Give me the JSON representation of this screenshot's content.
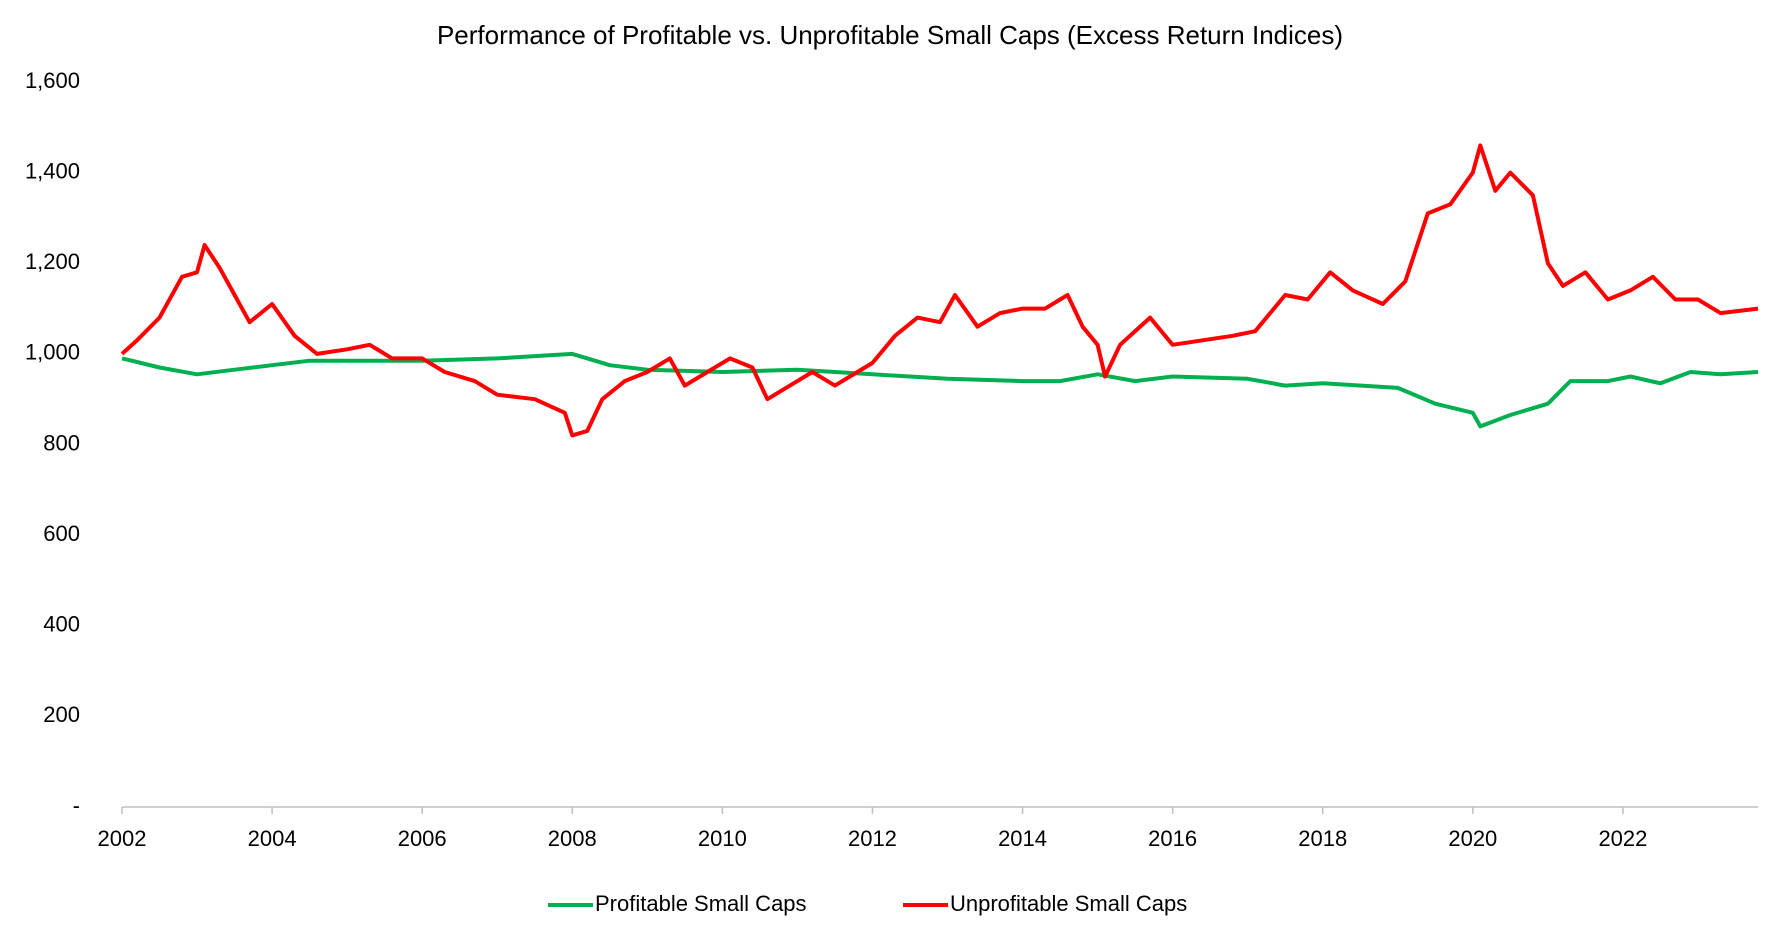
{
  "chart_data": {
    "type": "line",
    "title": "Performance of Profitable vs. Unprofitable Small Caps (Excess Return Indices)",
    "xlim": [
      2002,
      2023.8
    ],
    "xticks": [
      2002,
      2004,
      2006,
      2008,
      2010,
      2012,
      2014,
      2016,
      2018,
      2020,
      2022
    ],
    "ylim": [
      0,
      1600
    ],
    "yticks": [
      {
        "value": 0,
        "label": "-"
      },
      200,
      400,
      600,
      800,
      {
        "value": 1000,
        "label": "1,000"
      },
      {
        "value": 1200,
        "label": "1,200"
      },
      {
        "value": 1400,
        "label": "1,400"
      },
      {
        "value": 1600,
        "label": "1,600"
      }
    ],
    "legend": "bottom",
    "series": [
      {
        "name": "Profitable Small Caps",
        "color": "#00b050",
        "x": [
          2002,
          2002.5,
          2003,
          2003.5,
          2004,
          2004.5,
          2005,
          2006,
          2007,
          2008,
          2008.5,
          2009,
          2010,
          2011,
          2012,
          2013,
          2014,
          2014.5,
          2015,
          2015.5,
          2016,
          2017,
          2017.5,
          2018,
          2019,
          2019.5,
          2020,
          2020.1,
          2020.5,
          2021,
          2021.3,
          2021.8,
          2022.1,
          2022.5,
          2022.9,
          2023.3,
          2023.8
        ],
        "values": [
          990,
          970,
          955,
          965,
          975,
          985,
          985,
          985,
          990,
          1000,
          975,
          965,
          960,
          965,
          955,
          945,
          940,
          940,
          955,
          940,
          950,
          945,
          930,
          935,
          925,
          890,
          870,
          840,
          865,
          890,
          940,
          940,
          950,
          935,
          960,
          955,
          960
        ]
      },
      {
        "name": "Unprofitable Small Caps",
        "color": "#ff0000",
        "x": [
          2002,
          2002.2,
          2002.5,
          2002.8,
          2003,
          2003.1,
          2003.3,
          2003.5,
          2003.7,
          2004,
          2004.3,
          2004.6,
          2005,
          2005.3,
          2005.6,
          2006,
          2006.3,
          2006.7,
          2007,
          2007.5,
          2007.9,
          2008,
          2008.2,
          2008.4,
          2008.7,
          2009,
          2009.3,
          2009.5,
          2009.8,
          2010.1,
          2010.4,
          2010.6,
          2010.9,
          2011.2,
          2011.5,
          2011.8,
          2012,
          2012.3,
          2012.6,
          2012.9,
          2013.1,
          2013.4,
          2013.7,
          2014,
          2014.3,
          2014.6,
          2014.8,
          2015,
          2015.1,
          2015.3,
          2015.7,
          2016,
          2016.4,
          2016.8,
          2017.1,
          2017.5,
          2017.8,
          2018.1,
          2018.4,
          2018.8,
          2019.1,
          2019.4,
          2019.7,
          2020,
          2020.1,
          2020.3,
          2020.5,
          2020.8,
          2021,
          2021.2,
          2021.5,
          2021.8,
          2022.1,
          2022.4,
          2022.7,
          2023,
          2023.3,
          2023.8
        ],
        "values": [
          1000,
          1030,
          1080,
          1170,
          1180,
          1240,
          1190,
          1130,
          1070,
          1110,
          1040,
          1000,
          1010,
          1020,
          990,
          990,
          960,
          940,
          910,
          900,
          870,
          820,
          830,
          900,
          940,
          960,
          990,
          930,
          960,
          990,
          970,
          900,
          930,
          960,
          930,
          960,
          980,
          1040,
          1080,
          1070,
          1130,
          1060,
          1090,
          1100,
          1100,
          1130,
          1060,
          1020,
          950,
          1020,
          1080,
          1020,
          1030,
          1040,
          1050,
          1130,
          1120,
          1180,
          1140,
          1110,
          1160,
          1310,
          1330,
          1400,
          1460,
          1360,
          1400,
          1350,
          1200,
          1150,
          1180,
          1120,
          1140,
          1170,
          1120,
          1120,
          1090,
          1100
        ]
      }
    ]
  }
}
